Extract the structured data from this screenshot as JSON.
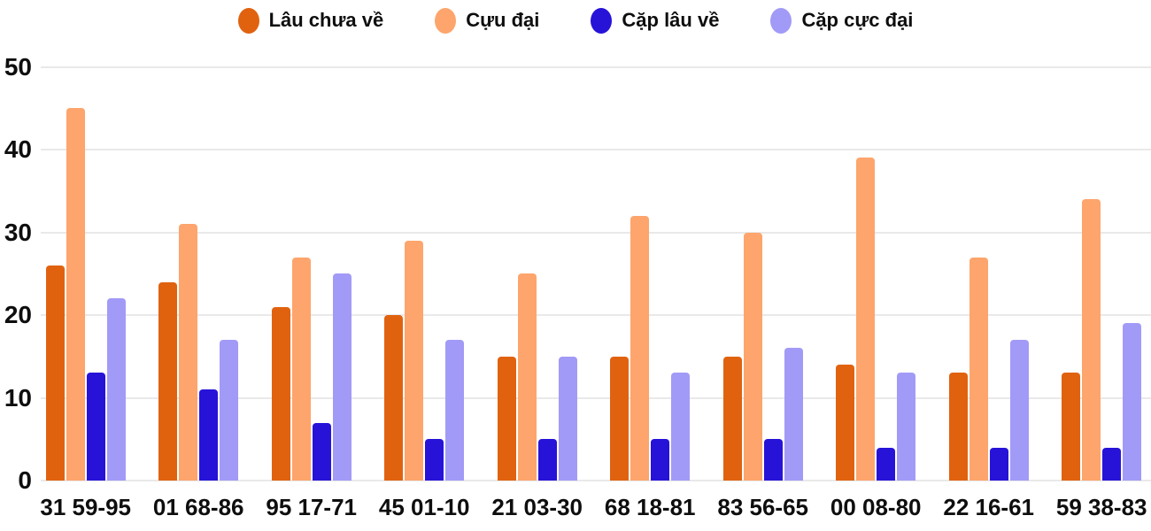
{
  "chart_data": {
    "type": "bar",
    "title": "",
    "categories": [
      "31 59-95",
      "01 68-86",
      "95 17-71",
      "45 01-10",
      "21 03-30",
      "68 18-81",
      "83 56-65",
      "00 08-80",
      "22 16-61",
      "59 38-83"
    ],
    "series": [
      {
        "name": "Lâu chưa về",
        "color": "#e0620f",
        "values": [
          26,
          24,
          21,
          20,
          15,
          15,
          15,
          14,
          13,
          13
        ]
      },
      {
        "name": "Cựu đại",
        "color": "#fda56c",
        "values": [
          45,
          31,
          27,
          29,
          25,
          32,
          30,
          39,
          27,
          34
        ]
      },
      {
        "name": "Cặp lâu về",
        "color": "#2713d8",
        "values": [
          13,
          11,
          7,
          5,
          5,
          5,
          5,
          4,
          4,
          4
        ]
      },
      {
        "name": "Cặp cực đại",
        "color": "#a29af7",
        "values": [
          22,
          17,
          25,
          17,
          15,
          13,
          16,
          13,
          17,
          19
        ]
      }
    ],
    "ylim": [
      0,
      50
    ],
    "yticks": [
      0,
      10,
      20,
      30,
      40,
      50
    ],
    "xlabel": "",
    "ylabel": "",
    "grid": "horizontal",
    "legend_position": "top",
    "background_color": "#ffffff",
    "gridline_color": "#e9e9e9",
    "axis_text_color": "#0e0e0e"
  }
}
